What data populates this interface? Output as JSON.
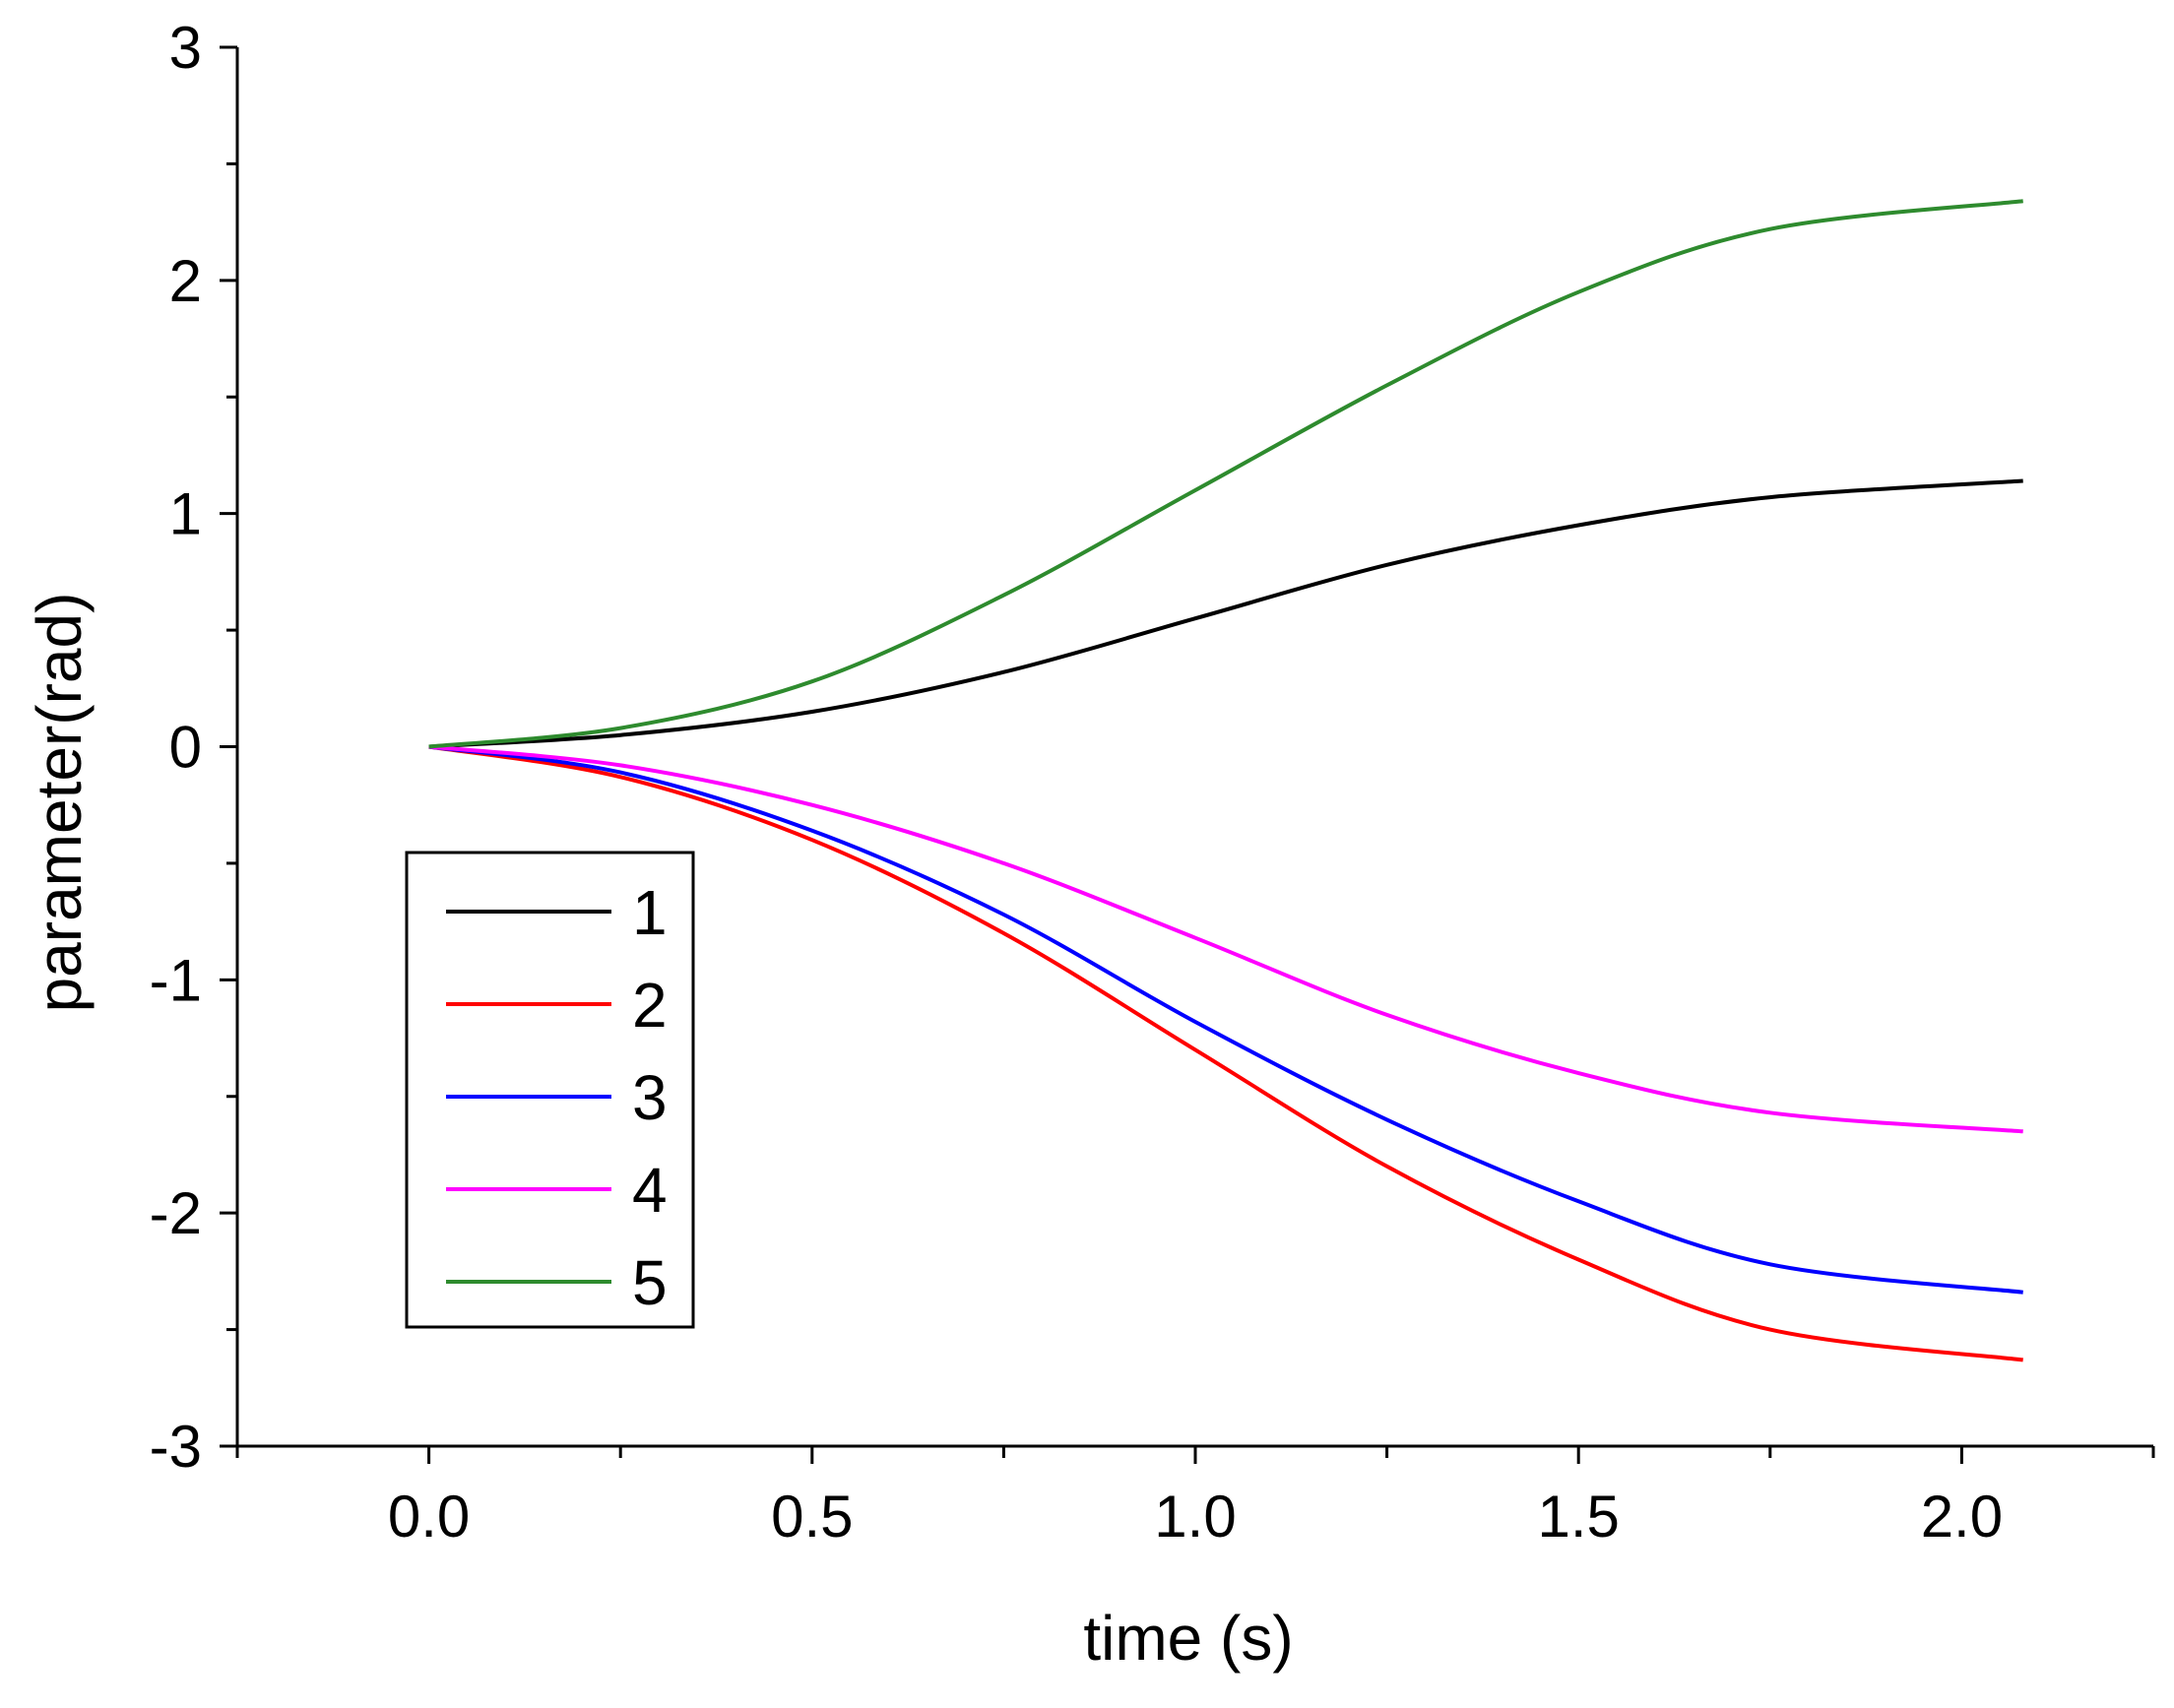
{
  "chart_data": {
    "type": "line",
    "title": "",
    "xlabel": "time (s)",
    "ylabel": "parameter(rad)",
    "xlim": [
      -0.25,
      2.25
    ],
    "ylim": [
      -3,
      3
    ],
    "x_ticks": [
      0.0,
      0.5,
      1.0,
      1.5,
      2.0
    ],
    "x_tick_labels": [
      "0.0",
      "0.5",
      "1.0",
      "1.5",
      "2.0"
    ],
    "y_ticks": [
      3,
      2,
      1,
      0,
      -1,
      -2,
      -3
    ],
    "y_tick_labels": [
      "3",
      "2",
      "1",
      "0",
      "-1",
      "-2",
      "-3"
    ],
    "grid": false,
    "legend_position": "lower-left",
    "t_end": 2.08,
    "series": [
      {
        "name": "1",
        "color": "#000000",
        "x": [
          0,
          0.25,
          0.5,
          0.75,
          1.0,
          1.25,
          1.5,
          1.75,
          2.08
        ],
        "values": [
          0,
          0.05,
          0.15,
          0.32,
          0.55,
          0.78,
          0.95,
          1.07,
          1.14
        ]
      },
      {
        "name": "2",
        "color": "#ff0000",
        "x": [
          0,
          0.25,
          0.5,
          0.75,
          1.0,
          1.25,
          1.5,
          1.75,
          2.08
        ],
        "values": [
          0,
          -0.13,
          -0.4,
          -0.8,
          -1.3,
          -1.8,
          -2.2,
          -2.5,
          -2.63
        ]
      },
      {
        "name": "3",
        "color": "#0000ff",
        "x": [
          0,
          0.25,
          0.5,
          0.75,
          1.0,
          1.25,
          1.5,
          1.75,
          2.08
        ],
        "values": [
          0,
          -0.11,
          -0.36,
          -0.72,
          -1.18,
          -1.6,
          -1.95,
          -2.22,
          -2.34
        ]
      },
      {
        "name": "4",
        "color": "#ff00ff",
        "x": [
          0,
          0.25,
          0.5,
          0.75,
          1.0,
          1.25,
          1.5,
          1.75,
          2.08
        ],
        "values": [
          0,
          -0.08,
          -0.25,
          -0.5,
          -0.82,
          -1.15,
          -1.4,
          -1.57,
          -1.65
        ]
      },
      {
        "name": "5",
        "color": "#2e8b2e",
        "x": [
          0,
          0.25,
          0.5,
          0.75,
          1.0,
          1.25,
          1.5,
          1.75,
          2.08
        ],
        "values": [
          0,
          0.08,
          0.28,
          0.65,
          1.1,
          1.55,
          1.95,
          2.22,
          2.34
        ]
      }
    ]
  }
}
